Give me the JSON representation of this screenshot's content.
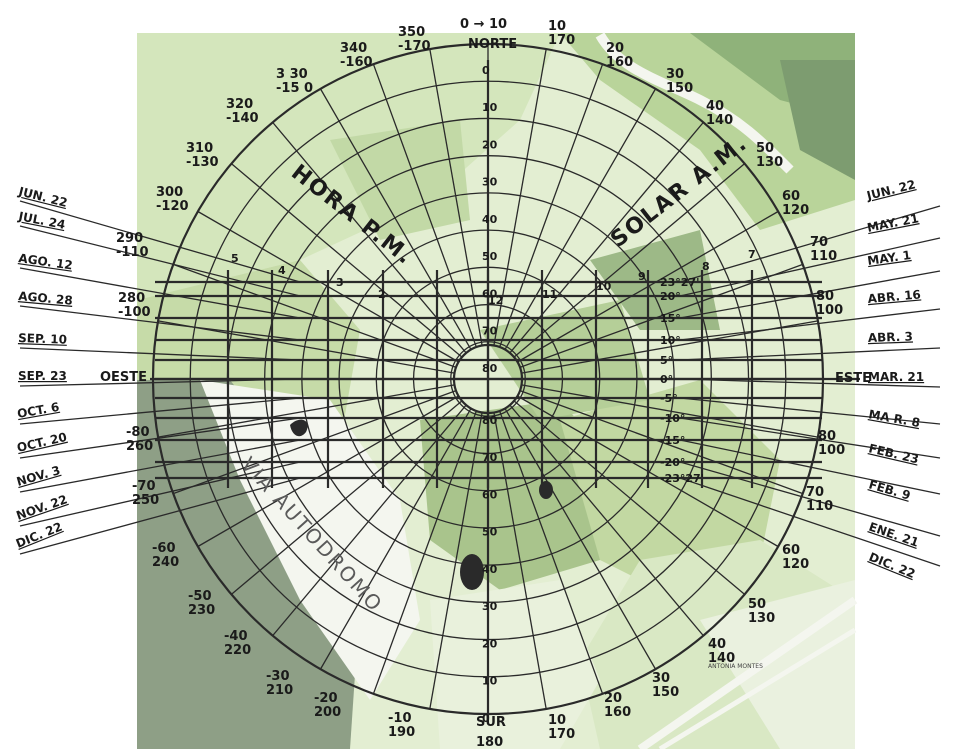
{
  "diagram": {
    "title_left": "HORA P.M.",
    "title_right": "SOLAR A.M.",
    "road_label": "VIA AUTODROMO",
    "place_label": "ANTONIA MONTES",
    "north": "NORTE",
    "south": "SUR",
    "west": "OESTE",
    "east": "ESTE",
    "arrow_top": "0 → 10",
    "arrow_bottom": "← SUR →",
    "bottom_number": "180",
    "az_labels": [
      {
        "id": "350",
        "text": "350\n-170"
      },
      {
        "id": "10",
        "text": "10\n170"
      },
      {
        "id": "340",
        "text": "340\n-160"
      },
      {
        "id": "20",
        "text": "20\n160"
      },
      {
        "id": "330",
        "text": "3 30\n-15 0"
      },
      {
        "id": "30",
        "text": "30\n150"
      },
      {
        "id": "320",
        "text": "320\n-140"
      },
      {
        "id": "40",
        "text": "40\n140"
      },
      {
        "id": "310",
        "text": "310\n-130"
      },
      {
        "id": "50",
        "text": "50\n130"
      },
      {
        "id": "300",
        "text": "300\n-120"
      },
      {
        "id": "60",
        "text": "60\n120"
      },
      {
        "id": "290",
        "text": "290\n-110"
      },
      {
        "id": "70",
        "text": "70\n110"
      },
      {
        "id": "280",
        "text": "280\n-100"
      },
      {
        "id": "80",
        "text": "80\n100"
      },
      {
        "id": "260",
        "text": "-80\n260"
      },
      {
        "id": "100",
        "text": "80\n100"
      },
      {
        "id": "250",
        "text": "-70\n250"
      },
      {
        "id": "110",
        "text": "70\n110"
      },
      {
        "id": "240",
        "text": "-60\n240"
      },
      {
        "id": "120",
        "text": "60\n120"
      },
      {
        "id": "230",
        "text": "-50\n230"
      },
      {
        "id": "130",
        "text": "50\n130"
      },
      {
        "id": "220",
        "text": "-40\n220"
      },
      {
        "id": "140",
        "text": "40\n140"
      },
      {
        "id": "210",
        "text": "-30\n210"
      },
      {
        "id": "150",
        "text": "30\n150"
      },
      {
        "id": "200",
        "text": "-20\n200"
      },
      {
        "id": "160",
        "text": "20\n160"
      },
      {
        "id": "190",
        "text": "-10\n190"
      },
      {
        "id": "170",
        "text": "10\n170"
      }
    ],
    "altitude_north": [
      "0",
      "10",
      "20",
      "30",
      "40",
      "50",
      "60",
      "70",
      "80"
    ],
    "altitude_south": [
      "80",
      "70",
      "60",
      "50",
      "40",
      "30",
      "20",
      "10",
      "0"
    ],
    "hours_left": [
      "5",
      "4",
      "3",
      "2"
    ],
    "hours_right": [
      "9",
      "10",
      "11",
      "12",
      "8",
      "7"
    ],
    "declinations": [
      "23°27'",
      "20°",
      "15°",
      "10°",
      "5°",
      "0°",
      "-5°",
      "-10°",
      "-15°",
      "-20°",
      "-23°27'"
    ],
    "dates_left": [
      "JUN. 22",
      "JUL. 24",
      "AGO. 12",
      "AGO. 28",
      "SEP. 10",
      "SEP. 23",
      "OCT. 6",
      "OCT. 20",
      "NOV. 3",
      "NOV. 22",
      "DIC. 22"
    ],
    "dates_right": [
      "JUN. 22",
      "MAY. 21",
      "MAY. 1",
      "ABR. 16",
      "ABR. 3",
      "MAR. 21",
      "MA R. 8",
      "FEB. 23",
      "FEB. 9",
      "ENE. 21",
      "DIC. 22"
    ],
    "colors": {
      "map_light": "#e6f0d6",
      "map_mid": "#c9deac",
      "map_dark": "#9fbf7e",
      "map_gray": "#8e9a86",
      "ink": "#1a1a1a"
    }
  }
}
